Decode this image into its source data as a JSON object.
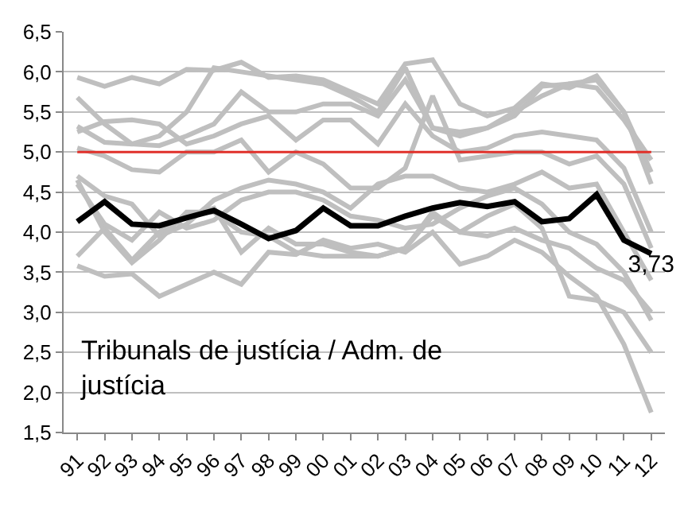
{
  "chart_data": {
    "type": "line",
    "categories": [
      "91",
      "92",
      "93",
      "94",
      "95",
      "96",
      "97",
      "98",
      "99",
      "00",
      "01",
      "02",
      "03",
      "04",
      "05",
      "06",
      "07",
      "08",
      "09",
      "10",
      "11",
      "12"
    ],
    "series": [
      {
        "color": "#bfbfbf",
        "values": [
          5.93,
          5.82,
          5.93,
          5.85,
          6.03,
          6.02,
          6.12,
          5.93,
          5.95,
          5.9,
          5.75,
          5.6,
          6.1,
          6.15,
          5.6,
          5.45,
          5.55,
          5.85,
          5.8,
          5.95,
          5.5,
          4.75
        ]
      },
      {
        "color": "#bfbfbf",
        "values": [
          5.68,
          5.35,
          5.1,
          5.08,
          5.2,
          5.35,
          5.75,
          5.5,
          5.5,
          5.6,
          5.6,
          5.45,
          5.9,
          5.3,
          5.25,
          5.3,
          5.45,
          5.82,
          5.85,
          5.8,
          5.4,
          4.9
        ]
      },
      {
        "color": "#bfbfbf",
        "values": [
          5.32,
          5.12,
          5.1,
          5.2,
          5.5,
          6.05,
          6.0,
          5.95,
          5.9,
          5.85,
          5.7,
          5.5,
          6.05,
          5.3,
          5.2,
          5.3,
          5.5,
          5.7,
          5.85,
          5.9,
          5.5,
          4.6
        ]
      },
      {
        "color": "#bfbfbf",
        "values": [
          5.25,
          5.38,
          5.4,
          5.35,
          5.1,
          5.2,
          5.35,
          5.45,
          5.15,
          5.4,
          5.4,
          5.1,
          5.6,
          5.2,
          5.0,
          5.05,
          5.2,
          5.25,
          5.2,
          5.15,
          4.8,
          4.0
        ]
      },
      {
        "color": "#bfbfbf",
        "values": [
          5.05,
          4.95,
          4.78,
          4.75,
          5.0,
          5.0,
          5.15,
          4.75,
          5.0,
          4.85,
          4.55,
          4.55,
          4.8,
          5.7,
          4.9,
          4.95,
          5.0,
          5.0,
          4.85,
          4.95,
          4.6,
          3.8
        ]
      },
      {
        "color": "#bfbfbf",
        "values": [
          4.7,
          4.45,
          4.35,
          3.95,
          4.1,
          4.4,
          4.55,
          4.65,
          4.6,
          4.5,
          4.3,
          4.6,
          4.7,
          4.7,
          4.55,
          4.5,
          4.6,
          4.75,
          4.55,
          4.6,
          4.0,
          3.4
        ]
      },
      {
        "color": "#bfbfbf",
        "values": [
          4.6,
          4.1,
          3.9,
          4.25,
          4.05,
          4.15,
          4.4,
          4.5,
          4.5,
          4.4,
          4.2,
          4.15,
          4.05,
          4.1,
          4.3,
          4.45,
          4.55,
          4.35,
          4.0,
          3.85,
          3.5,
          2.9
        ]
      },
      {
        "color": "#bfbfbf",
        "values": [
          3.7,
          4.05,
          3.65,
          4.0,
          4.2,
          4.3,
          3.75,
          4.05,
          3.85,
          3.85,
          3.75,
          3.7,
          3.8,
          4.25,
          4.0,
          4.2,
          4.35,
          4.05,
          3.2,
          3.15,
          3.0,
          2.5
        ]
      },
      {
        "color": "#bfbfbf",
        "values": [
          3.58,
          3.45,
          3.48,
          3.2,
          3.35,
          3.5,
          3.35,
          3.75,
          3.72,
          3.9,
          3.8,
          3.85,
          3.75,
          4.0,
          3.6,
          3.7,
          3.9,
          3.75,
          3.45,
          3.2,
          2.6,
          1.75
        ]
      },
      {
        "color": "#bfbfbf",
        "values": [
          4.65,
          4.0,
          3.62,
          3.9,
          4.25,
          4.25,
          4.0,
          3.95,
          3.75,
          3.7,
          3.7,
          3.7,
          3.8,
          4.2,
          4.0,
          3.95,
          4.05,
          3.9,
          3.8,
          3.55,
          3.4,
          3.0
        ]
      },
      {
        "color": "#000000",
        "values": [
          4.13,
          4.38,
          4.1,
          4.08,
          4.18,
          4.27,
          4.1,
          3.92,
          4.02,
          4.3,
          4.08,
          4.08,
          4.2,
          4.3,
          4.37,
          4.32,
          4.38,
          4.13,
          4.17,
          4.47,
          3.9,
          3.73
        ],
        "value_labels": [
          null,
          null,
          null,
          null,
          null,
          null,
          null,
          null,
          null,
          null,
          null,
          null,
          null,
          null,
          null,
          null,
          null,
          null,
          null,
          null,
          null,
          "3,73"
        ]
      }
    ],
    "ylim": [
      1.5,
      6.5
    ],
    "yticks": [
      {
        "value": 1.5,
        "label": "1,5"
      },
      {
        "value": 2.0,
        "label": "2,0"
      },
      {
        "value": 2.5,
        "label": "2,5"
      },
      {
        "value": 3.0,
        "label": "3,0"
      },
      {
        "value": 3.5,
        "label": "3,5"
      },
      {
        "value": 4.0,
        "label": "4,0"
      },
      {
        "value": 4.5,
        "label": "4,5"
      },
      {
        "value": 5.0,
        "label": "5,0"
      },
      {
        "value": 5.5,
        "label": "5,5"
      },
      {
        "value": 6.0,
        "label": "6,0"
      },
      {
        "value": 6.5,
        "label": "6,5"
      }
    ],
    "ref_lines": [
      {
        "axis": "y",
        "value": 5.0,
        "color": "#e0302a"
      }
    ],
    "annotations": [
      "Tribunals de justícia / Adm. de justícia"
    ],
    "grid": "y",
    "marker": "none",
    "line_style": "solid"
  }
}
